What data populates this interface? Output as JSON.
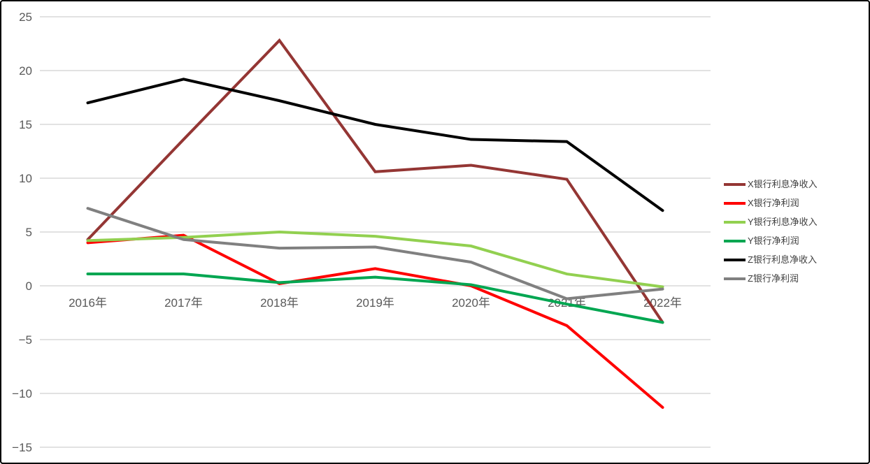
{
  "chart_data": {
    "type": "line",
    "title": "",
    "xlabel": "",
    "ylabel": "",
    "categories": [
      "2016年",
      "2017年",
      "2018年",
      "2019年",
      "2020年",
      "2021年",
      "2022年"
    ],
    "series": [
      {
        "name": "X银行利息净收入",
        "color": "#943634",
        "values": [
          4.3,
          13.6,
          22.8,
          10.6,
          11.2,
          9.9,
          -3.4
        ]
      },
      {
        "name": "X银行净利润",
        "color": "#FF0000",
        "values": [
          4.0,
          4.7,
          0.2,
          1.6,
          0.0,
          -3.7,
          -11.3
        ]
      },
      {
        "name": "Y银行利息净收入",
        "color": "#92D050",
        "values": [
          4.2,
          4.5,
          5.0,
          4.6,
          3.7,
          1.1,
          -0.1
        ]
      },
      {
        "name": "Y银行净利润",
        "color": "#00A651",
        "values": [
          1.1,
          1.1,
          0.3,
          0.8,
          0.1,
          -1.7,
          -3.4
        ]
      },
      {
        "name": "Z银行利息净收入",
        "color": "#000000",
        "values": [
          17.0,
          19.2,
          17.2,
          15.0,
          13.6,
          13.4,
          7.0
        ]
      },
      {
        "name": "Z银行净利润",
        "color": "#808080",
        "values": [
          7.2,
          4.3,
          3.5,
          3.6,
          2.2,
          -1.2,
          -0.3
        ]
      }
    ],
    "y_ticks": [
      25,
      20,
      15,
      10,
      5,
      0,
      -5,
      -10,
      -15
    ],
    "ylim": [
      -15,
      25
    ],
    "ytick_step": 5,
    "grid": true,
    "legend_position": "right"
  },
  "style": {
    "grid_color": "#D9D9D9",
    "tick_label_color": "#595959",
    "legend_label_color": "#404040",
    "line_width": 4,
    "background": "#FFFFFF",
    "border_color": "#000000"
  }
}
